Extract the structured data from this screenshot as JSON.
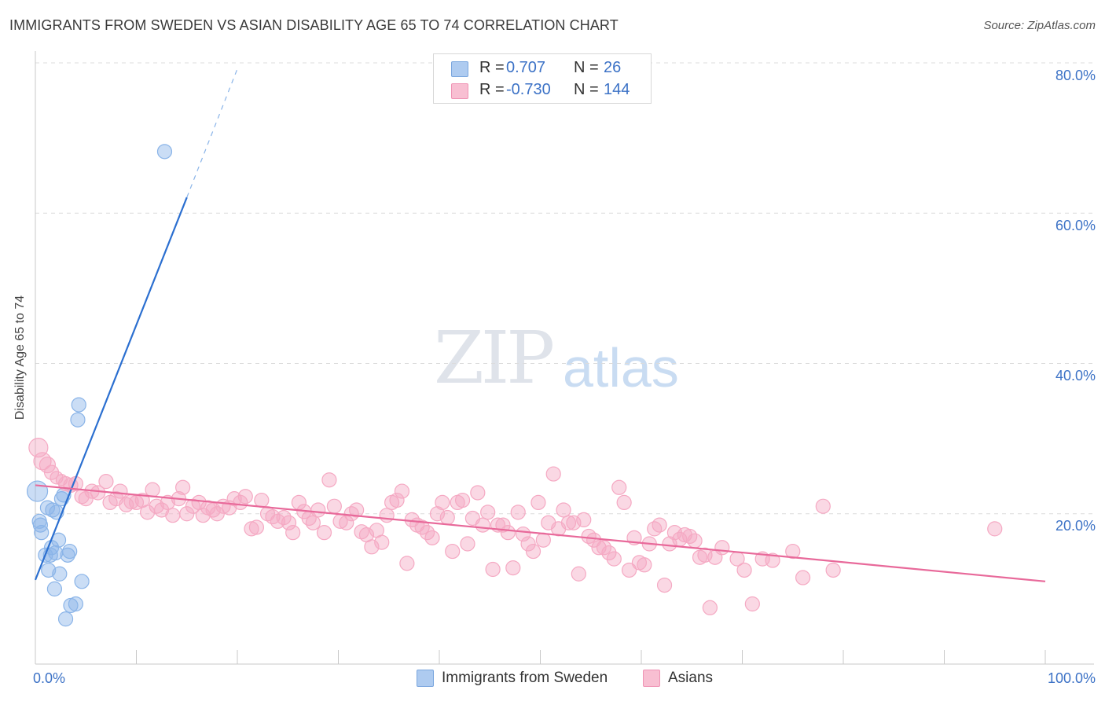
{
  "title": "IMMIGRANTS FROM SWEDEN VS ASIAN DISABILITY AGE 65 TO 74 CORRELATION CHART",
  "source": "Source: ZipAtlas.com",
  "watermark": {
    "zip": "ZIP",
    "atlas": "atlas"
  },
  "legend_top": [
    {
      "r_label": "R =",
      "r_value": "0.707",
      "n_label": "N =",
      "n_value": "26",
      "color": "#aecbf0"
    },
    {
      "r_label": "R =",
      "r_value": "-0.730",
      "n_label": "N =",
      "n_value": "144",
      "color": "#f8bfd2"
    }
  ],
  "chart_data": {
    "type": "scatter",
    "title": "IMMIGRANTS FROM SWEDEN VS ASIAN DISABILITY AGE 65 TO 74 CORRELATION CHART",
    "xlabel": "",
    "ylabel": "Disability Age 65 to 74",
    "xlim": [
      0,
      100
    ],
    "ylim": [
      0,
      80
    ],
    "x_tick_labels": [
      "0.0%",
      "100.0%"
    ],
    "y_ticks": [
      20,
      40,
      60,
      80
    ],
    "y_tick_labels": [
      "20.0%",
      "40.0%",
      "60.0%",
      "80.0%"
    ],
    "grid": true,
    "legend_position": "bottom",
    "series": [
      {
        "name": "Immigrants from Sweden",
        "color": "#8ab4e8",
        "line_color": "#2b6fd0",
        "trend": {
          "x": [
            0,
            15
          ],
          "y": [
            11.2,
            62.1
          ],
          "dashed_to": [
            20,
            79.2
          ]
        },
        "points": [
          [
            0.2,
            23.0
          ],
          [
            0.4,
            19.0
          ],
          [
            0.5,
            18.5
          ],
          [
            0.6,
            17.5
          ],
          [
            1.0,
            14.5
          ],
          [
            1.2,
            20.8
          ],
          [
            1.3,
            12.5
          ],
          [
            1.5,
            14.5
          ],
          [
            1.6,
            15.5
          ],
          [
            1.7,
            20.5
          ],
          [
            1.9,
            10.0
          ],
          [
            2.0,
            14.8
          ],
          [
            2.1,
            20.2
          ],
          [
            2.3,
            16.5
          ],
          [
            2.4,
            12.0
          ],
          [
            2.6,
            22.0
          ],
          [
            2.8,
            22.5
          ],
          [
            3.0,
            6.0
          ],
          [
            3.2,
            14.5
          ],
          [
            3.4,
            15.0
          ],
          [
            3.5,
            7.8
          ],
          [
            4.0,
            8.0
          ],
          [
            4.2,
            32.5
          ],
          [
            4.3,
            34.5
          ],
          [
            4.6,
            11.0
          ],
          [
            12.8,
            68.2
          ]
        ]
      },
      {
        "name": "Asians",
        "color": "#f5a9c3",
        "line_color": "#e8699a",
        "trend": {
          "x": [
            0,
            100
          ],
          "y": [
            23.8,
            11.0
          ]
        },
        "points": [
          [
            0.3,
            28.8
          ],
          [
            0.7,
            27.0
          ],
          [
            1.2,
            26.5
          ],
          [
            1.6,
            25.5
          ],
          [
            2.1,
            24.8
          ],
          [
            2.6,
            24.5
          ],
          [
            3.0,
            24.0
          ],
          [
            3.5,
            23.8
          ],
          [
            4.0,
            24.0
          ],
          [
            4.6,
            22.3
          ],
          [
            5.0,
            22.0
          ],
          [
            5.6,
            23.0
          ],
          [
            6.2,
            22.8
          ],
          [
            7.0,
            24.3
          ],
          [
            7.4,
            21.5
          ],
          [
            8.0,
            22.0
          ],
          [
            8.4,
            23.0
          ],
          [
            9.0,
            21.2
          ],
          [
            9.5,
            21.6
          ],
          [
            10.0,
            21.5
          ],
          [
            10.6,
            21.8
          ],
          [
            11.1,
            20.2
          ],
          [
            11.6,
            23.2
          ],
          [
            12.0,
            21.0
          ],
          [
            12.5,
            20.5
          ],
          [
            13.1,
            21.5
          ],
          [
            13.6,
            19.8
          ],
          [
            14.2,
            22.0
          ],
          [
            14.6,
            23.5
          ],
          [
            15.0,
            20.0
          ],
          [
            15.6,
            21.0
          ],
          [
            16.2,
            21.5
          ],
          [
            16.6,
            19.8
          ],
          [
            17.1,
            20.8
          ],
          [
            17.6,
            20.5
          ],
          [
            18.0,
            20.0
          ],
          [
            18.6,
            21.0
          ],
          [
            19.2,
            20.8
          ],
          [
            19.7,
            22.0
          ],
          [
            20.3,
            21.5
          ],
          [
            20.8,
            22.3
          ],
          [
            21.4,
            18.0
          ],
          [
            21.9,
            18.2
          ],
          [
            22.4,
            21.8
          ],
          [
            23.0,
            20.0
          ],
          [
            23.5,
            19.6
          ],
          [
            24.0,
            19.0
          ],
          [
            24.6,
            19.5
          ],
          [
            25.1,
            18.8
          ],
          [
            25.5,
            17.5
          ],
          [
            26.1,
            21.5
          ],
          [
            26.6,
            20.3
          ],
          [
            27.1,
            19.4
          ],
          [
            27.5,
            18.8
          ],
          [
            28.0,
            20.5
          ],
          [
            28.6,
            17.5
          ],
          [
            29.1,
            24.5
          ],
          [
            29.6,
            21.0
          ],
          [
            30.2,
            19.0
          ],
          [
            30.8,
            18.8
          ],
          [
            31.3,
            20.0
          ],
          [
            31.8,
            20.5
          ],
          [
            32.3,
            17.6
          ],
          [
            32.8,
            17.2
          ],
          [
            33.3,
            15.6
          ],
          [
            33.8,
            17.8
          ],
          [
            34.3,
            16.2
          ],
          [
            34.8,
            19.8
          ],
          [
            35.3,
            21.5
          ],
          [
            35.8,
            21.8
          ],
          [
            36.3,
            23.0
          ],
          [
            36.8,
            13.4
          ],
          [
            37.3,
            19.2
          ],
          [
            37.8,
            18.5
          ],
          [
            38.3,
            18.2
          ],
          [
            38.8,
            17.5
          ],
          [
            39.3,
            16.8
          ],
          [
            39.8,
            20.0
          ],
          [
            40.3,
            21.5
          ],
          [
            40.8,
            19.5
          ],
          [
            41.3,
            15.0
          ],
          [
            41.8,
            21.5
          ],
          [
            42.3,
            21.8
          ],
          [
            42.8,
            16.0
          ],
          [
            43.3,
            19.4
          ],
          [
            43.8,
            22.8
          ],
          [
            44.3,
            18.5
          ],
          [
            44.8,
            20.2
          ],
          [
            45.3,
            12.6
          ],
          [
            45.8,
            18.5
          ],
          [
            46.3,
            18.5
          ],
          [
            46.8,
            17.5
          ],
          [
            47.3,
            12.8
          ],
          [
            47.8,
            20.2
          ],
          [
            48.3,
            17.3
          ],
          [
            48.8,
            16.0
          ],
          [
            49.3,
            15.0
          ],
          [
            49.8,
            21.5
          ],
          [
            50.3,
            16.5
          ],
          [
            50.8,
            18.8
          ],
          [
            51.3,
            25.3
          ],
          [
            51.8,
            18.0
          ],
          [
            52.3,
            20.5
          ],
          [
            52.8,
            18.8
          ],
          [
            53.3,
            18.8
          ],
          [
            53.8,
            12.0
          ],
          [
            54.3,
            19.2
          ],
          [
            54.8,
            17.0
          ],
          [
            55.3,
            16.5
          ],
          [
            55.8,
            15.5
          ],
          [
            56.3,
            15.5
          ],
          [
            56.8,
            14.8
          ],
          [
            57.3,
            14.0
          ],
          [
            57.8,
            23.5
          ],
          [
            58.3,
            21.5
          ],
          [
            58.8,
            12.5
          ],
          [
            59.3,
            16.8
          ],
          [
            59.8,
            13.5
          ],
          [
            60.3,
            13.2
          ],
          [
            60.8,
            16.0
          ],
          [
            61.3,
            18.0
          ],
          [
            61.8,
            18.5
          ],
          [
            62.3,
            10.5
          ],
          [
            62.8,
            16.0
          ],
          [
            63.3,
            17.5
          ],
          [
            63.8,
            16.6
          ],
          [
            64.3,
            17.2
          ],
          [
            64.8,
            17.0
          ],
          [
            65.3,
            16.4
          ],
          [
            65.8,
            14.2
          ],
          [
            66.3,
            14.5
          ],
          [
            66.8,
            7.5
          ],
          [
            67.3,
            14.2
          ],
          [
            68.0,
            15.5
          ],
          [
            69.5,
            14.0
          ],
          [
            70.2,
            12.5
          ],
          [
            71.0,
            8.0
          ],
          [
            72.0,
            14.0
          ],
          [
            73.0,
            13.8
          ],
          [
            75.0,
            15.0
          ],
          [
            76.0,
            11.5
          ],
          [
            78.0,
            21.0
          ],
          [
            79.0,
            12.5
          ],
          [
            95.0,
            18.0
          ]
        ]
      }
    ]
  }
}
